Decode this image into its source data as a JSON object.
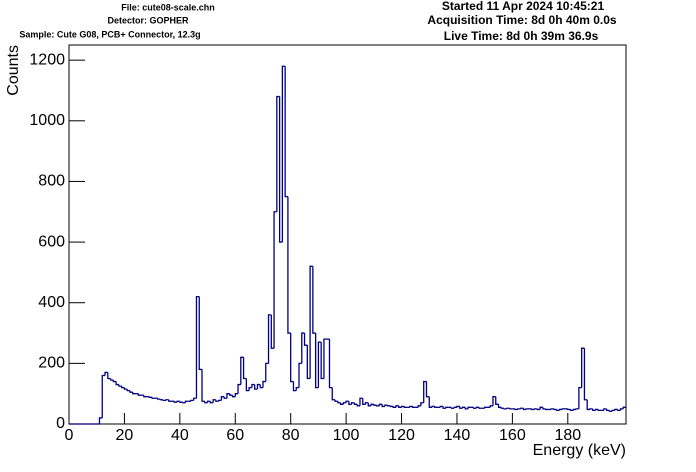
{
  "header": {
    "file": "File: cute08-scale.chn",
    "detector": "Detector: GOPHER",
    "sample": "Sample: Cute G08, PCB+ Connector, 12.3g",
    "started": "Started 11 Apr 2024 10:45:21",
    "acquisition": "Acquisition Time: 8d 0h 40m 0.0s",
    "live": "Live Time: 8d 0h 39m 36.9s"
  },
  "chart_data": {
    "type": "histogram",
    "xlabel": "Energy (keV)",
    "ylabel": "Counts",
    "color": "#000080",
    "xlim": [
      0,
      201
    ],
    "ylim": [
      0,
      1250
    ],
    "xticks": [
      0,
      20,
      40,
      60,
      80,
      100,
      120,
      140,
      160,
      180
    ],
    "yticks": [
      0,
      200,
      400,
      600,
      800,
      1000,
      1200
    ],
    "bins": [
      0,
      1,
      2,
      3,
      4,
      5,
      6,
      7,
      8,
      9,
      10,
      11,
      12,
      13,
      14,
      15,
      16,
      17,
      18,
      19,
      20,
      21,
      22,
      23,
      24,
      25,
      26,
      27,
      28,
      29,
      30,
      31,
      32,
      33,
      34,
      35,
      36,
      37,
      38,
      39,
      40,
      41,
      42,
      43,
      44,
      45,
      46,
      47,
      48,
      49,
      50,
      51,
      52,
      53,
      54,
      55,
      56,
      57,
      58,
      59,
      60,
      61,
      62,
      63,
      64,
      65,
      66,
      67,
      68,
      69,
      70,
      71,
      72,
      73,
      74,
      75,
      76,
      77,
      78,
      79,
      80,
      81,
      82,
      83,
      84,
      85,
      86,
      87,
      88,
      89,
      90,
      91,
      92,
      93,
      94,
      95,
      96,
      97,
      98,
      99,
      100,
      101,
      102,
      103,
      104,
      105,
      106,
      107,
      108,
      109,
      110,
      111,
      112,
      113,
      114,
      115,
      116,
      117,
      118,
      119,
      120,
      121,
      122,
      123,
      124,
      125,
      126,
      127,
      128,
      129,
      130,
      131,
      132,
      133,
      134,
      135,
      136,
      137,
      138,
      139,
      140,
      141,
      142,
      143,
      144,
      145,
      146,
      147,
      148,
      149,
      150,
      151,
      152,
      153,
      154,
      155,
      156,
      157,
      158,
      159,
      160,
      161,
      162,
      163,
      164,
      165,
      166,
      167,
      168,
      169,
      170,
      171,
      172,
      173,
      174,
      175,
      176,
      177,
      178,
      179,
      180,
      181,
      182,
      183,
      184,
      185,
      186,
      187,
      188,
      189,
      190,
      191,
      192,
      193,
      194,
      195,
      196,
      197,
      198,
      199,
      200,
      201
    ],
    "counts": [
      0,
      0,
      0,
      0,
      0,
      0,
      0,
      0,
      0,
      0,
      0,
      20,
      160,
      170,
      150,
      145,
      140,
      130,
      125,
      120,
      115,
      110,
      105,
      100,
      100,
      95,
      95,
      90,
      90,
      88,
      85,
      85,
      82,
      80,
      78,
      80,
      75,
      75,
      72,
      75,
      72,
      70,
      75,
      75,
      78,
      85,
      420,
      180,
      75,
      70,
      75,
      70,
      80,
      75,
      78,
      90,
      85,
      100,
      95,
      90,
      100,
      130,
      220,
      150,
      110,
      120,
      130,
      115,
      130,
      120,
      140,
      200,
      360,
      250,
      700,
      1080,
      600,
      1180,
      750,
      300,
      140,
      110,
      120,
      200,
      300,
      260,
      150,
      520,
      300,
      120,
      270,
      150,
      280,
      280,
      120,
      80,
      75,
      70,
      65,
      70,
      75,
      65,
      70,
      65,
      60,
      85,
      65,
      70,
      60,
      65,
      62,
      60,
      65,
      58,
      62,
      60,
      58,
      55,
      60,
      55,
      58,
      55,
      55,
      58,
      55,
      55,
      60,
      70,
      140,
      90,
      55,
      58,
      55,
      55,
      58,
      52,
      55,
      55,
      52,
      55,
      58,
      52,
      55,
      50,
      55,
      55,
      52,
      55,
      52,
      52,
      55,
      55,
      60,
      90,
      65,
      55,
      52,
      50,
      52,
      50,
      50,
      48,
      50,
      52,
      48,
      50,
      50,
      48,
      50,
      48,
      55,
      50,
      48,
      48,
      50,
      48,
      45,
      48,
      50,
      50,
      48,
      45,
      48,
      50,
      120,
      250,
      80,
      48,
      50,
      45,
      48,
      45,
      45,
      50,
      45,
      42,
      45,
      48,
      45,
      50,
      55
    ]
  }
}
